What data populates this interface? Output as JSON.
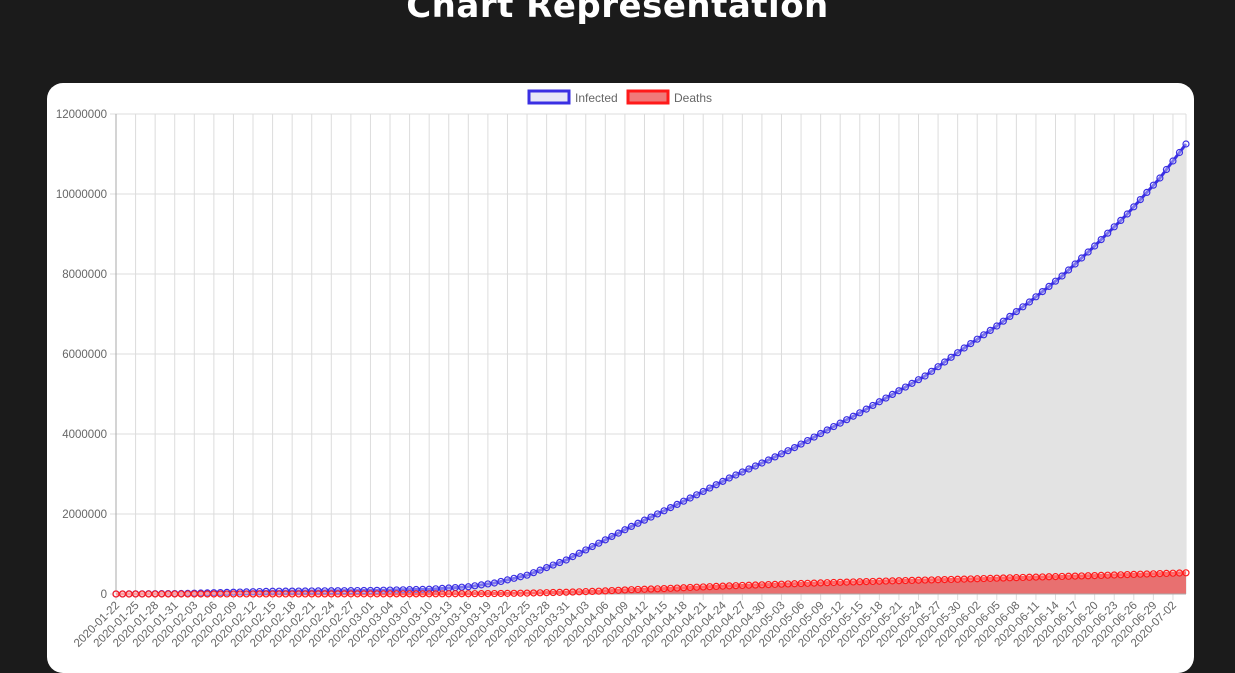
{
  "page": {
    "title": "Chart Representation"
  },
  "colors": {
    "page_bg": "#1b1b1b",
    "card_bg": "#ffffff",
    "infected": "#3a2fe3",
    "infected_fill": "#e3e3e3",
    "deaths": "#ff1a1a",
    "deaths_fill": "#e87070",
    "grid": "#dcdcdc"
  },
  "chart_data": {
    "type": "area",
    "legend_position": "top-center",
    "grid": true,
    "ylim": [
      0,
      12000000
    ],
    "y_ticks": [
      "12000000",
      "10000000",
      "8000000",
      "6000000",
      "4000000",
      "2000000",
      "0"
    ],
    "x_start": "2020-01-22",
    "x_end": "2020-07-04",
    "x_tick_labels": [
      "2020-01-22",
      "2020-01-25",
      "2020-01-28",
      "2020-01-31",
      "2020-02-03",
      "2020-02-06",
      "2020-02-09",
      "2020-02-12",
      "2020-02-15",
      "2020-02-18",
      "2020-02-21",
      "2020-02-24",
      "2020-02-27",
      "2020-03-01",
      "2020-03-04",
      "2020-03-07",
      "2020-03-10",
      "2020-03-13",
      "2020-03-16",
      "2020-03-19",
      "2020-03-22",
      "2020-03-25",
      "2020-03-28",
      "2020-03-31",
      "2020-04-03",
      "2020-04-06",
      "2020-04-09",
      "2020-04-12",
      "2020-04-15",
      "2020-04-18",
      "2020-04-21",
      "2020-04-24",
      "2020-04-27",
      "2020-04-30",
      "2020-05-03",
      "2020-05-06",
      "2020-05-09",
      "2020-05-12",
      "2020-05-15",
      "2020-05-18",
      "2020-05-21",
      "2020-05-24",
      "2020-05-27",
      "2020-05-30",
      "2020-06-02",
      "2020-06-05",
      "2020-06-08",
      "2020-06-11",
      "2020-06-14",
      "2020-06-17",
      "2020-06-20",
      "2020-06-23",
      "2020-06-26",
      "2020-06-29",
      "2020-07-02"
    ],
    "series": [
      {
        "name": "Infected",
        "keypoints": [
          [
            "2020-01-22",
            555
          ],
          [
            "2020-02-01",
            12000
          ],
          [
            "2020-02-15",
            69000
          ],
          [
            "2020-03-01",
            88000
          ],
          [
            "2020-03-10",
            119000
          ],
          [
            "2020-03-16",
            181000
          ],
          [
            "2020-03-20",
            275000
          ],
          [
            "2020-03-25",
            470000
          ],
          [
            "2020-03-31",
            850000
          ],
          [
            "2020-04-05",
            1270000
          ],
          [
            "2020-04-10",
            1690000
          ],
          [
            "2020-04-15",
            2080000
          ],
          [
            "2020-04-20",
            2480000
          ],
          [
            "2020-04-25",
            2900000
          ],
          [
            "2020-05-01",
            3350000
          ],
          [
            "2020-05-05",
            3660000
          ],
          [
            "2020-05-10",
            4100000
          ],
          [
            "2020-05-15",
            4530000
          ],
          [
            "2020-05-20",
            4990000
          ],
          [
            "2020-05-25",
            5450000
          ],
          [
            "2020-05-31",
            6150000
          ],
          [
            "2020-06-05",
            6700000
          ],
          [
            "2020-06-10",
            7300000
          ],
          [
            "2020-06-15",
            7950000
          ],
          [
            "2020-06-20",
            8700000
          ],
          [
            "2020-06-25",
            9500000
          ],
          [
            "2020-06-30",
            10400000
          ],
          [
            "2020-07-04",
            11250000
          ]
        ]
      },
      {
        "name": "Deaths",
        "keypoints": [
          [
            "2020-01-22",
            17
          ],
          [
            "2020-02-01",
            260
          ],
          [
            "2020-02-15",
            1600
          ],
          [
            "2020-03-01",
            3000
          ],
          [
            "2020-03-10",
            4300
          ],
          [
            "2020-03-16",
            7100
          ],
          [
            "2020-03-20",
            11000
          ],
          [
            "2020-03-25",
            22000
          ],
          [
            "2020-03-31",
            44000
          ],
          [
            "2020-04-05",
            70000
          ],
          [
            "2020-04-10",
            108000
          ],
          [
            "2020-04-15",
            135000
          ],
          [
            "2020-04-20",
            170000
          ],
          [
            "2020-04-25",
            203000
          ],
          [
            "2020-05-01",
            235000
          ],
          [
            "2020-05-10",
            283000
          ],
          [
            "2020-05-20",
            328000
          ],
          [
            "2020-05-31",
            372000
          ],
          [
            "2020-06-10",
            418000
          ],
          [
            "2020-06-20",
            460000
          ],
          [
            "2020-06-30",
            510000
          ],
          [
            "2020-07-04",
            530000
          ]
        ]
      }
    ]
  }
}
